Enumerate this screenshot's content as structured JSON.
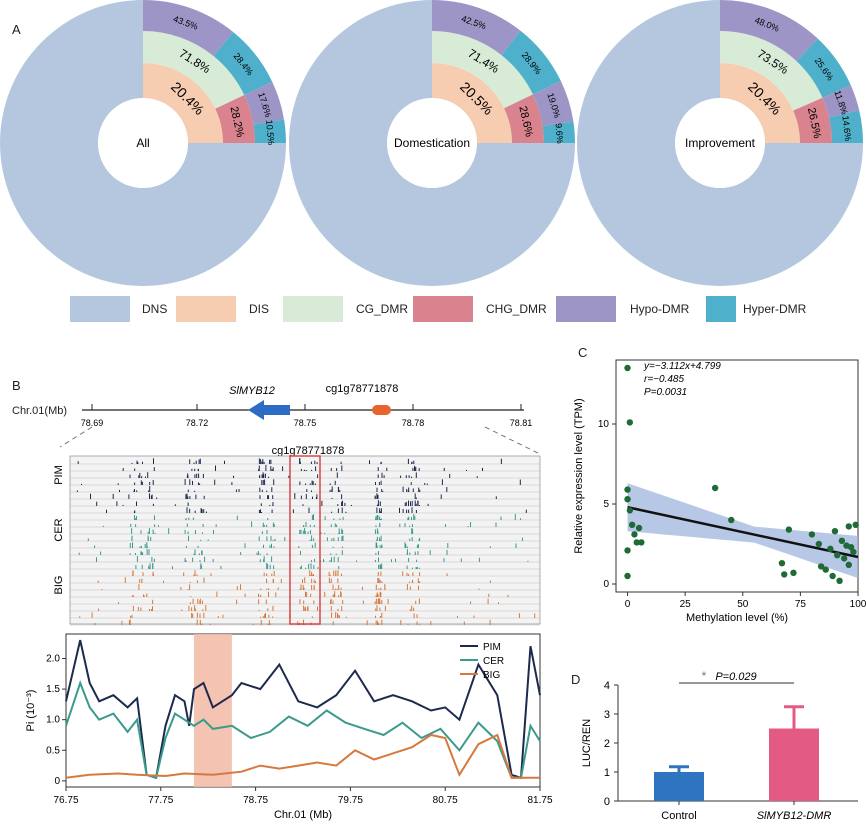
{
  "panels": {
    "a": "A",
    "b": "B",
    "c": "C",
    "d": "D"
  },
  "colors": {
    "dns": "#b4c7de",
    "dis": "#f6cdb1",
    "cg": "#d8ebd6",
    "chg": "#d8838d",
    "hypo": "#9e95c7",
    "hyper": "#4fb0cc",
    "pim": "#1c2a4e",
    "cer": "#3a9a8c",
    "big": "#d6793f",
    "scatter": "#1f6a36",
    "bar_control": "#2e74c0",
    "bar_dmr": "#e35b83"
  },
  "chart_data": [
    {
      "type": "pie",
      "id": "donut-all",
      "center_label": "All",
      "dis_label": "20.4%",
      "cg_label": "71.8%",
      "chg_label": "28.2%",
      "cg_hypo_label": "43.5%",
      "cg_hyper_label": "28.4%",
      "chg_hypo_label": "17.6%",
      "chg_hyper_label": "10.5%",
      "values": {
        "dis": 20.4,
        "cg": 71.8,
        "chg": 28.2,
        "cg_hypo": 43.5,
        "cg_hyper": 28.4,
        "chg_hypo": 17.6,
        "chg_hyper": 10.5
      }
    },
    {
      "type": "pie",
      "id": "donut-domestication",
      "center_label": "Domestication",
      "dis_label": "20.5%",
      "cg_label": "71.4%",
      "chg_label": "28.6%",
      "cg_hypo_label": "42.5%",
      "cg_hyper_label": "28.9%",
      "chg_hypo_label": "19.0%",
      "chg_hyper_label": "9.6%",
      "values": {
        "dis": 20.5,
        "cg": 71.4,
        "chg": 28.6,
        "cg_hypo": 42.5,
        "cg_hyper": 28.9,
        "chg_hypo": 19.0,
        "chg_hyper": 9.6
      }
    },
    {
      "type": "pie",
      "id": "donut-improvement",
      "center_label": "Improvement",
      "dis_label": "20.4%",
      "cg_label": "73.5%",
      "chg_label": "26.5%",
      "cg_hypo_label": "48.0%",
      "cg_hyper_label": "25.6%",
      "chg_hypo_label": "11.8%",
      "chg_hyper_label": "14.6%",
      "values": {
        "dis": 20.4,
        "cg": 73.5,
        "chg": 26.5,
        "cg_hypo": 48.0,
        "cg_hyper": 25.6,
        "chg_hypo": 11.8,
        "chg_hyper": 14.6
      }
    },
    {
      "type": "line",
      "id": "pi-plot",
      "xlabel": "Chr.01 (Mb)",
      "ylabel": "Pi (10⁻³)",
      "xlim": [
        76.75,
        81.75
      ],
      "ylim": [
        -0.1,
        2.4
      ],
      "xticks": [
        "76.75",
        "77.75",
        "78.75",
        "79.75",
        "80.75",
        "81.75"
      ],
      "yticks": [
        "0",
        "0.5",
        "1.0",
        "1.5",
        "2.0"
      ],
      "highlight": [
        78.1,
        78.5
      ],
      "series": [
        {
          "name": "PIM",
          "x": [
            76.75,
            76.9,
            77.0,
            77.1,
            77.25,
            77.4,
            77.5,
            77.6,
            77.7,
            77.8,
            77.9,
            78.0,
            78.05,
            78.1,
            78.2,
            78.3,
            78.4,
            78.5,
            78.6,
            78.8,
            79.0,
            79.2,
            79.4,
            79.6,
            79.8,
            80.0,
            80.2,
            80.4,
            80.6,
            80.75,
            80.9,
            81.1,
            81.3,
            81.45,
            81.55,
            81.65,
            81.75
          ],
          "y": [
            1.3,
            2.3,
            1.6,
            1.3,
            1.4,
            1.2,
            1.35,
            0.1,
            0.05,
            0.9,
            1.4,
            1.3,
            0.9,
            1.5,
            1.6,
            1.2,
            1.3,
            1.4,
            1.6,
            1.5,
            1.9,
            1.3,
            1.2,
            1.4,
            1.8,
            1.3,
            1.4,
            1.3,
            1.15,
            1.2,
            1.0,
            1.9,
            1.4,
            0.1,
            0.05,
            2.2,
            1.4
          ]
        },
        {
          "name": "CER",
          "x": [
            76.75,
            76.9,
            77.0,
            77.1,
            77.25,
            77.4,
            77.5,
            77.6,
            77.7,
            77.8,
            77.9,
            78.0,
            78.1,
            78.2,
            78.3,
            78.5,
            78.7,
            78.9,
            79.1,
            79.3,
            79.5,
            79.7,
            79.9,
            80.1,
            80.3,
            80.5,
            80.7,
            80.9,
            81.1,
            81.3,
            81.45,
            81.55,
            81.65,
            81.75
          ],
          "y": [
            0.9,
            1.6,
            1.2,
            1.0,
            1.1,
            0.8,
            1.0,
            0.1,
            0.05,
            0.7,
            1.1,
            1.0,
            0.9,
            1.0,
            0.85,
            0.9,
            0.7,
            0.8,
            1.05,
            0.9,
            1.15,
            0.95,
            0.85,
            0.75,
            0.95,
            0.7,
            0.85,
            0.5,
            0.95,
            0.65,
            0.05,
            0.05,
            0.9,
            0.65
          ]
        },
        {
          "name": "BIG",
          "x": [
            76.75,
            77.0,
            77.3,
            77.5,
            77.8,
            78.0,
            78.3,
            78.6,
            78.8,
            79.0,
            79.2,
            79.4,
            79.6,
            79.8,
            80.0,
            80.2,
            80.4,
            80.6,
            80.75,
            80.9,
            81.1,
            81.3,
            81.45,
            81.55,
            81.65,
            81.75
          ],
          "y": [
            0.05,
            0.1,
            0.12,
            0.1,
            0.08,
            0.12,
            0.1,
            0.15,
            0.25,
            0.2,
            0.25,
            0.3,
            0.25,
            0.5,
            0.35,
            0.45,
            0.55,
            0.75,
            0.7,
            0.1,
            0.6,
            0.75,
            0.05,
            0.05,
            0.05,
            0.05
          ]
        }
      ]
    },
    {
      "type": "scatter",
      "id": "scatter-c",
      "xlabel": "Methylation level (%)",
      "ylabel": "Relative expression level (TPM)",
      "xlim": [
        -5,
        100
      ],
      "ylim": [
        -0.5,
        14
      ],
      "xticks": [
        0,
        25,
        50,
        75,
        100
      ],
      "yticks": [
        0,
        5,
        10
      ],
      "equation": "y=−3.112x+4.799",
      "r_label": "r=−0.485",
      "p_label": "P=0.0031",
      "fit": {
        "slope": -0.03112,
        "intercept": 4.799
      },
      "points": [
        [
          0,
          13.5
        ],
        [
          1,
          10.1
        ],
        [
          0,
          5.9
        ],
        [
          0,
          5.3
        ],
        [
          1,
          4.6
        ],
        [
          2,
          3.7
        ],
        [
          3,
          3.1
        ],
        [
          4,
          2.6
        ],
        [
          6,
          2.6
        ],
        [
          5,
          3.5
        ],
        [
          0,
          2.1
        ],
        [
          0,
          0.5
        ],
        [
          38,
          6
        ],
        [
          45,
          4
        ],
        [
          67,
          1.3
        ],
        [
          68,
          0.6
        ],
        [
          70,
          3.4
        ],
        [
          72,
          0.7
        ],
        [
          80,
          3.1
        ],
        [
          83,
          2.5
        ],
        [
          84,
          1.1
        ],
        [
          86,
          0.9
        ],
        [
          88,
          2.2
        ],
        [
          89,
          0.5
        ],
        [
          90,
          3.3
        ],
        [
          91,
          1.8
        ],
        [
          92,
          0.2
        ],
        [
          93,
          2.7
        ],
        [
          94,
          1.6
        ],
        [
          95,
          2.4
        ],
        [
          96,
          3.6
        ],
        [
          97,
          2.3
        ],
        [
          98,
          2.0
        ],
        [
          99,
          3.7
        ],
        [
          96,
          1.2
        ]
      ]
    },
    {
      "type": "bar",
      "id": "bar-d",
      "ylabel": "LUC/REN",
      "categories": [
        "Control",
        "SlMYB12-DMR"
      ],
      "values": [
        1.0,
        2.5
      ],
      "errors": [
        0.18,
        0.75
      ],
      "ylim": [
        0,
        4
      ],
      "yticks": [
        0,
        1,
        2,
        3,
        4
      ],
      "sig_star": "*",
      "sig_p": "P=0.029"
    }
  ],
  "legend": {
    "dns": "DNS",
    "dis": "DIS",
    "cg": "CG_DMR",
    "chg": "CHG_DMR",
    "hypo": "Hypo-DMR",
    "hyper": "Hyper-DMR"
  },
  "gene_track": {
    "gene": "SlMYB12",
    "marker": "cg1g78771878",
    "marker2": "cg1g78771878",
    "axis_label": "Chr.01(Mb)",
    "ticks": [
      "78.69",
      "78.72",
      "78.75",
      "78.78",
      "78.81"
    ],
    "groups": [
      "PIM",
      "CER",
      "BIG"
    ]
  }
}
